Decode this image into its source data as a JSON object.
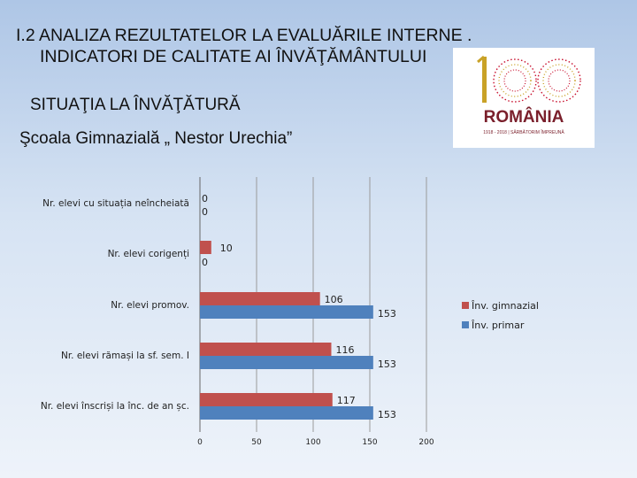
{
  "slide": {
    "title_line1": "I.2 ANALIZA REZULTATELOR LA EVALUĂRILE INTERNE .",
    "title_line2": "INDICATORI DE CALITATE AI ÎNVĂŢĂMÂNTULUI",
    "subtitle": "SITUAŢIA LA ÎNVĂŢĂTURĂ",
    "school": "Şcoala Gimnazială „ Nestor Urechia”"
  },
  "logo": {
    "number": "100",
    "word": "ROMÂNIA",
    "tagline": "1918 - 2018 | SĂRBĂTORIM ÎMPREUNĂ",
    "colors": {
      "ring_red": "#c8102e",
      "ring_gold": "#c9a227",
      "text": "#7a1f2b"
    }
  },
  "chart_data": {
    "type": "bar",
    "orientation": "horizontal",
    "categories": [
      "Nr. elevi cu situația neîncheiată",
      "Nr. elevi corigenți",
      "Nr. elevi promov.",
      "Nr. elevi rămași la sf. sem. I",
      "Nr. elevi înscriși la înc. de an șc."
    ],
    "series": [
      {
        "name": "Înv. gimnazial",
        "color": "#c0504d",
        "values": [
          0,
          10,
          106,
          116,
          117
        ]
      },
      {
        "name": "Înv. primar",
        "color": "#4f81bd",
        "values": [
          0,
          0,
          153,
          153,
          153
        ]
      }
    ],
    "x_ticks": [
      "0",
      "50",
      "100",
      "150",
      "200"
    ],
    "xlim": [
      0,
      200
    ],
    "grid": true,
    "legend_position": "right"
  }
}
